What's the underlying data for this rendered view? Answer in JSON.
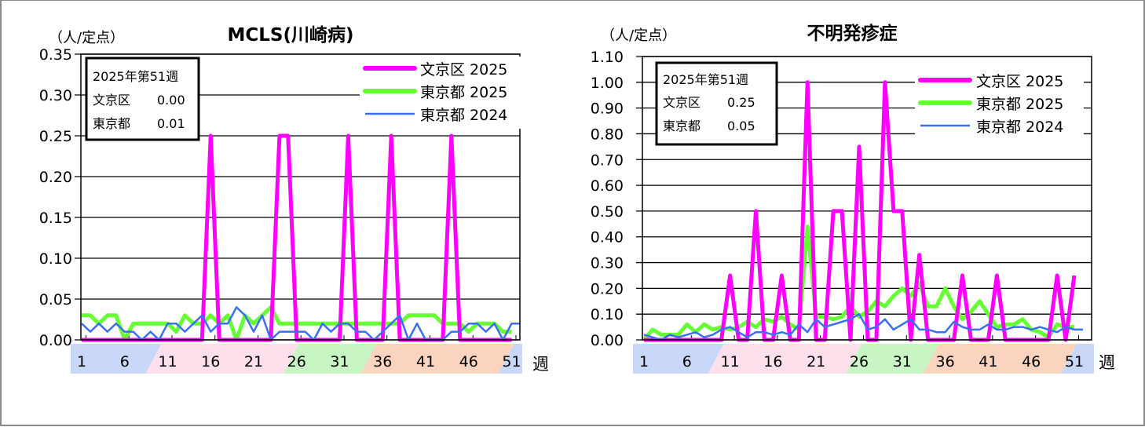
{
  "chart_data": [
    {
      "type": "line",
      "title": "MCLS(川崎病)",
      "unit_label": "（人/定点）",
      "xlabel": "週",
      "ylabel": "（人/定点）",
      "ylim": [
        0,
        0.35
      ],
      "yticks": [
        "0.00",
        "0.05",
        "0.10",
        "0.15",
        "0.20",
        "0.25",
        "0.30",
        "0.35"
      ],
      "ytick_values": [
        0,
        0.05,
        0.1,
        0.15,
        0.2,
        0.25,
        0.3,
        0.35
      ],
      "xtick_labels": [
        "1",
        "6",
        "11",
        "16",
        "21",
        "26",
        "31",
        "36",
        "41",
        "46",
        "51"
      ],
      "grid": true,
      "legend_position": "upper right",
      "info_box": {
        "line1": "2025年第51週",
        "line2_label": "文京区",
        "line2_value": "0.00",
        "line3_label": "東京都",
        "line3_value": "0.01"
      },
      "series": [
        {
          "name": "文京区 2025",
          "color": "#ff00ff",
          "width": 5,
          "values": [
            0,
            0,
            0,
            0,
            0,
            0,
            0,
            0,
            0,
            0,
            0,
            0,
            0,
            0,
            0,
            0.25,
            0,
            0,
            0,
            0,
            0,
            0,
            0,
            0.25,
            0.25,
            0,
            0,
            0,
            0,
            0,
            0,
            0.25,
            0,
            0,
            0,
            0,
            0.25,
            0,
            0,
            0,
            0,
            0,
            0,
            0.25,
            0,
            0,
            0,
            0,
            0,
            0,
            0
          ]
        },
        {
          "name": "東京都 2025",
          "color": "#66ff33",
          "width": 5,
          "values": [
            0.03,
            0.03,
            0.02,
            0.03,
            0.03,
            0.0,
            0.02,
            0.02,
            0.02,
            0.02,
            0.02,
            0.01,
            0.03,
            0.02,
            0.02,
            0.03,
            0.02,
            0.03,
            0.0,
            0.03,
            0.02,
            0.03,
            0.04,
            0.02,
            0.02,
            0.02,
            0.02,
            0.02,
            0.02,
            0.02,
            0.02,
            0.02,
            0.02,
            0.02,
            0.02,
            0.02,
            0.02,
            0.02,
            0.03,
            0.03,
            0.03,
            0.03,
            0.02,
            0.02,
            0.02,
            0.01,
            0.02,
            0.02,
            0.02,
            0.01,
            0.01
          ]
        },
        {
          "name": "東京都 2024",
          "color": "#3b6ef0",
          "width": 2.5,
          "values": [
            0.02,
            0.01,
            0.02,
            0.01,
            0.02,
            0.01,
            0.01,
            0.0,
            0.01,
            0.0,
            0.02,
            0.02,
            0.01,
            0.02,
            0.03,
            0.01,
            0.02,
            0.02,
            0.04,
            0.03,
            0.01,
            0.03,
            0.0,
            0.01,
            0.01,
            0.01,
            0.01,
            0.0,
            0.02,
            0.01,
            0.02,
            0.02,
            0.01,
            0.01,
            0.0,
            0.01,
            0.02,
            0.03,
            0.0,
            0.02,
            0.0,
            0.0,
            0.0,
            0.01,
            0.01,
            0.02,
            0.02,
            0.01,
            0.02,
            0.0,
            0.02,
            0.02
          ]
        }
      ]
    },
    {
      "type": "line",
      "title": "不明発疹症",
      "unit_label": "（人/定点）",
      "xlabel": "週",
      "ylabel": "（人/定点）",
      "ylim": [
        0,
        1.1
      ],
      "yticks": [
        "0.00",
        "0.10",
        "0.20",
        "0.30",
        "0.40",
        "0.50",
        "0.60",
        "0.70",
        "0.80",
        "0.90",
        "1.00",
        "1.10"
      ],
      "ytick_values": [
        0,
        0.1,
        0.2,
        0.3,
        0.4,
        0.5,
        0.6,
        0.7,
        0.8,
        0.9,
        1.0,
        1.1
      ],
      "xtick_labels": [
        "1",
        "6",
        "11",
        "16",
        "21",
        "26",
        "31",
        "36",
        "41",
        "46",
        "51"
      ],
      "grid": true,
      "legend_position": "upper right",
      "info_box": {
        "line1": "2025年第51週",
        "line2_label": "文京区",
        "line2_value": "0.25",
        "line3_label": "東京都",
        "line3_value": "0.05"
      },
      "series": [
        {
          "name": "文京区 2025",
          "color": "#ff00ff",
          "width": 5,
          "values": [
            0,
            0,
            0,
            0,
            0,
            0,
            0,
            0,
            0,
            0,
            0.25,
            0,
            0,
            0.5,
            0,
            0,
            0.25,
            0,
            0,
            1.0,
            0,
            0,
            0.5,
            0.5,
            0,
            0.75,
            0,
            0,
            1.0,
            0.5,
            0.5,
            0,
            0.33,
            0,
            0,
            0,
            0,
            0.25,
            0,
            0,
            0,
            0.25,
            0,
            0,
            0,
            0,
            0,
            0,
            0.25,
            0,
            0.25
          ]
        },
        {
          "name": "東京都 2025",
          "color": "#66ff33",
          "width": 5,
          "values": [
            0.0,
            0.04,
            0.02,
            0.02,
            0.02,
            0.06,
            0.03,
            0.06,
            0.04,
            0.05,
            0.04,
            0.05,
            0.07,
            0.05,
            0.08,
            0.07,
            0.09,
            0.06,
            0.04,
            0.44,
            0.09,
            0.09,
            0.08,
            0.09,
            0.13,
            0.09,
            0.11,
            0.15,
            0.13,
            0.17,
            0.2,
            0.17,
            0.22,
            0.13,
            0.13,
            0.2,
            0.13,
            0.08,
            0.11,
            0.15,
            0.1,
            0.05,
            0.06,
            0.06,
            0.08,
            0.04,
            0.03,
            0.01,
            0.06,
            0.05,
            0.05
          ]
        },
        {
          "name": "東京都 2024",
          "color": "#3b6ef0",
          "width": 2.5,
          "values": [
            0.02,
            0.01,
            0.0,
            0.02,
            0.01,
            0.02,
            0.03,
            0.01,
            0.02,
            0.04,
            0.05,
            0.03,
            0.01,
            0.03,
            0.03,
            0.02,
            0.03,
            0.02,
            0.06,
            0.03,
            0.08,
            0.05,
            0.06,
            0.07,
            0.08,
            0.1,
            0.04,
            0.05,
            0.08,
            0.04,
            0.06,
            0.08,
            0.04,
            0.04,
            0.03,
            0.03,
            0.07,
            0.05,
            0.04,
            0.04,
            0.06,
            0.04,
            0.04,
            0.05,
            0.05,
            0.04,
            0.05,
            0.04,
            0.03,
            0.05,
            0.04,
            0.04
          ]
        }
      ]
    }
  ],
  "week_bands": [
    {
      "from": 1,
      "to": 9,
      "color": "#c9d8f8"
    },
    {
      "from": 9,
      "to": 25,
      "color": "#fde0ec"
    },
    {
      "from": 25,
      "to": 34,
      "color": "#c8f5c4"
    },
    {
      "from": 34,
      "to": 50,
      "color": "#fad4be"
    },
    {
      "from": 50,
      "to": 53,
      "color": "#c9d8f8"
    }
  ]
}
